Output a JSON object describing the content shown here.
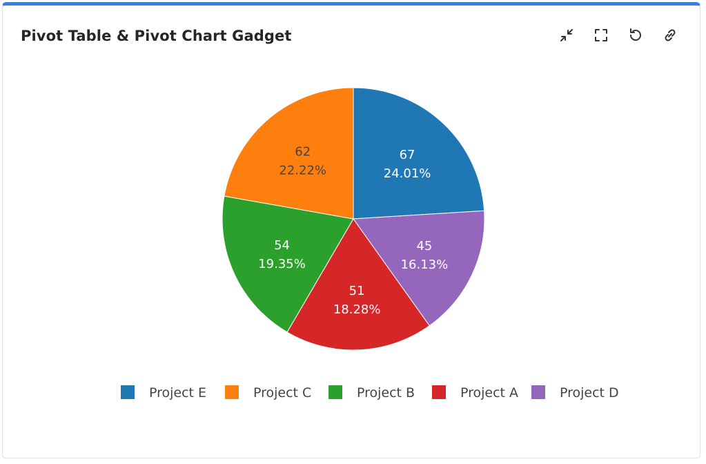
{
  "header": {
    "title": "Pivot Table & Pivot Chart Gadget"
  },
  "toolbar": {
    "icons": [
      "collapse-icon",
      "fullscreen-icon",
      "refresh-icon",
      "link-icon"
    ]
  },
  "colors": {
    "accent": "#2f80ed",
    "label_dark": "#444444",
    "label_light": "#ffffff"
  },
  "chart_data": {
    "type": "pie",
    "title": "",
    "legend_position": "bottom",
    "slices": [
      {
        "label": "Project E",
        "value": 67,
        "percent": "24.01%",
        "color": "#1f77b4",
        "label_color": "#ffffff"
      },
      {
        "label": "Project D",
        "value": 45,
        "percent": "16.13%",
        "color": "#9467bd",
        "label_color": "#ffffff"
      },
      {
        "label": "Project A",
        "value": 51,
        "percent": "18.28%",
        "color": "#d62728",
        "label_color": "#ffffff"
      },
      {
        "label": "Project B",
        "value": 54,
        "percent": "19.35%",
        "color": "#2ca02c",
        "label_color": "#ffffff"
      },
      {
        "label": "Project C",
        "value": 62,
        "percent": "22.22%",
        "color": "#ff7f0e",
        "label_color": "#444444"
      }
    ],
    "legend_order": [
      "Project E",
      "Project C",
      "Project B",
      "Project A",
      "Project D"
    ]
  }
}
